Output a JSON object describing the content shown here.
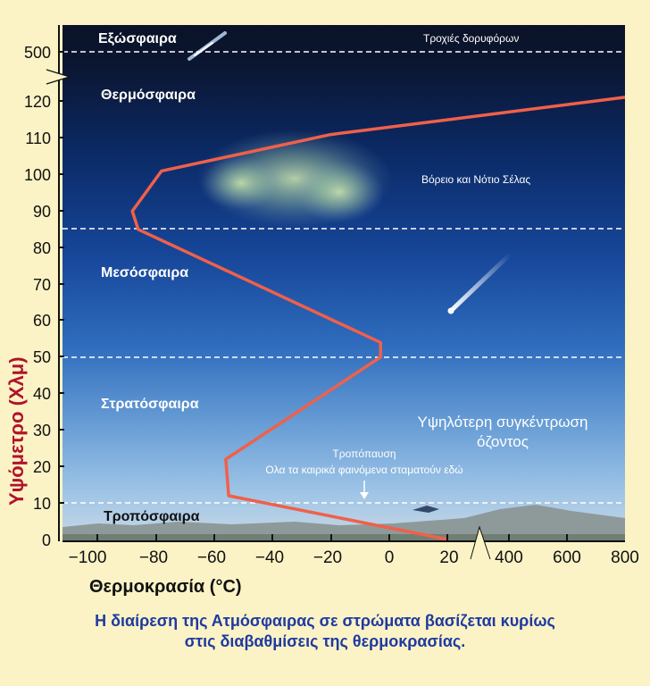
{
  "diagram": {
    "y_axis_title": "Υψόμετρο (Χλμ)",
    "x_axis_title": "Θερμοκρασία  (°C)",
    "y_ticks": [
      "500",
      "120",
      "110",
      "100",
      "90",
      "80",
      "70",
      "60",
      "50",
      "40",
      "30",
      "20",
      "10",
      "0"
    ],
    "x_ticks": [
      "−100",
      "−80",
      "−60",
      "−40",
      "−20",
      "0",
      "20",
      "400",
      "600",
      "800"
    ],
    "layers": {
      "exosphere": "Εξώσφαιρα",
      "thermosphere": "Θερμόσφαιρα",
      "mesosphere": "Μεσόσφαιρα",
      "stratosphere": "Στρατόσφαιρα",
      "troposphere": "Τροπόσφαιρα"
    },
    "notes": {
      "satellites": "Τροχιές δορυφόρων",
      "aurora": "Βόρειο και Νότιο Σέλας",
      "ozone_line1": "Υψηλότερη συγκέντρωση",
      "ozone_line2": "όζοντος",
      "tropopause_line1": "Τροπόπαυση",
      "tropopause_line2": "Ολα τα καιρικά φαινόμενα σταματούν εδώ"
    },
    "colors": {
      "profile": "#f0604a",
      "axis_title_y": "#b0132a",
      "caption": "#1f3aa0",
      "background": "#fbf3c6"
    },
    "temperature_profile": [
      {
        "t": 20,
        "h": 0
      },
      {
        "t": -55,
        "h": 12
      },
      {
        "t": -56,
        "h": 22
      },
      {
        "t": -3,
        "h": 50
      },
      {
        "t": -3,
        "h": 54
      },
      {
        "t": -86,
        "h": 85
      },
      {
        "t": -88,
        "h": 90
      },
      {
        "t": -78,
        "h": 101
      },
      {
        "t": -20,
        "h": 111
      },
      {
        "t": 800,
        "h": 121
      }
    ]
  },
  "caption": {
    "line1": "Η διαίρεση της Ατμόσφαιρας σε στρώματα βασίζεται κυρίως",
    "line2": "στις διαβαθμίσεις της θερμοκρασίας."
  }
}
